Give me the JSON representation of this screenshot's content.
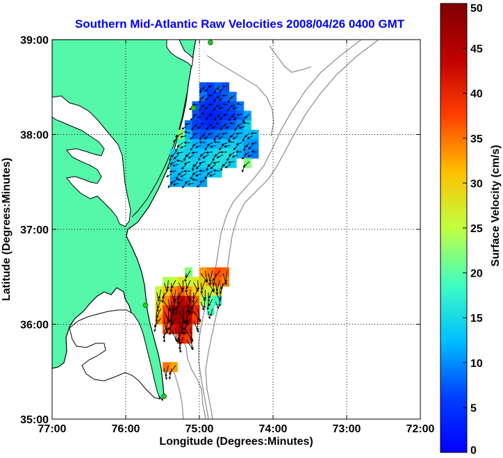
{
  "chart_data": {
    "type": "heatmap",
    "title": "Southern Mid-Atlantic Raw Velocities 2008/04/26 0400 GMT",
    "xlabel": "Longitude (Degrees:Minutes)",
    "ylabel": "Latitude (Degrees:Minutes)",
    "xlim": [
      -77,
      -72
    ],
    "ylim": [
      35,
      39
    ],
    "x_ticks": [
      {
        "value": -77,
        "label": "77:00"
      },
      {
        "value": -76,
        "label": "76:00"
      },
      {
        "value": -75,
        "label": "75:00"
      },
      {
        "value": -74,
        "label": "74:00"
      },
      {
        "value": -73,
        "label": "73:00"
      },
      {
        "value": -72,
        "label": "72:00"
      }
    ],
    "y_ticks": [
      {
        "value": 35,
        "label": "35:00"
      },
      {
        "value": 36,
        "label": "36:00"
      },
      {
        "value": 37,
        "label": "37:00"
      },
      {
        "value": 38,
        "label": "38:00"
      },
      {
        "value": 39,
        "label": "39:00"
      }
    ],
    "grid": "dotted",
    "colorbar": {
      "label": "Surface Velocity (cm/s)",
      "min": 0,
      "max": 50,
      "ticks": [
        0,
        5,
        10,
        15,
        20,
        25,
        30,
        35,
        40,
        45,
        50
      ]
    },
    "colors": {
      "land": "#55f7a8",
      "coast": "#000000",
      "bathymetry": "#909090",
      "station": "#22cc22",
      "arrow": "#000000"
    },
    "stations": [
      {
        "lon": -74.85,
        "lat": 38.97
      },
      {
        "lon": -75.08,
        "lat": 38.28
      },
      {
        "lon": -75.73,
        "lat": 36.2
      },
      {
        "lon": -75.48,
        "lat": 35.24
      }
    ],
    "regions": [
      {
        "name": "north",
        "cells": [
          {
            "lon": -74.95,
            "lat": 38.5,
            "v": 7
          },
          {
            "lon": -74.85,
            "lat": 38.5,
            "v": 6
          },
          {
            "lon": -74.75,
            "lat": 38.5,
            "v": 8
          },
          {
            "lon": -74.65,
            "lat": 38.5,
            "v": 7
          },
          {
            "lon": -74.95,
            "lat": 38.4,
            "v": 9
          },
          {
            "lon": -74.85,
            "lat": 38.4,
            "v": 5
          },
          {
            "lon": -74.75,
            "lat": 38.4,
            "v": 6
          },
          {
            "lon": -74.65,
            "lat": 38.4,
            "v": 8
          },
          {
            "lon": -74.55,
            "lat": 38.4,
            "v": 9
          },
          {
            "lon": -75.05,
            "lat": 38.3,
            "v": 8
          },
          {
            "lon": -74.95,
            "lat": 38.3,
            "v": 5
          },
          {
            "lon": -74.85,
            "lat": 38.3,
            "v": 4
          },
          {
            "lon": -74.75,
            "lat": 38.3,
            "v": 5
          },
          {
            "lon": -74.65,
            "lat": 38.3,
            "v": 6
          },
          {
            "lon": -74.55,
            "lat": 38.3,
            "v": 7
          },
          {
            "lon": -74.45,
            "lat": 38.3,
            "v": 9
          },
          {
            "lon": -75.05,
            "lat": 38.2,
            "v": 7
          },
          {
            "lon": -74.95,
            "lat": 38.2,
            "v": 4
          },
          {
            "lon": -74.85,
            "lat": 38.2,
            "v": 3
          },
          {
            "lon": -74.75,
            "lat": 38.2,
            "v": 4
          },
          {
            "lon": -74.65,
            "lat": 38.2,
            "v": 5
          },
          {
            "lon": -74.55,
            "lat": 38.2,
            "v": 6
          },
          {
            "lon": -74.45,
            "lat": 38.2,
            "v": 8
          },
          {
            "lon": -74.35,
            "lat": 38.2,
            "v": 11
          },
          {
            "lon": -75.15,
            "lat": 38.1,
            "v": 9
          },
          {
            "lon": -75.05,
            "lat": 38.1,
            "v": 6
          },
          {
            "lon": -74.95,
            "lat": 38.1,
            "v": 5
          },
          {
            "lon": -74.85,
            "lat": 38.1,
            "v": 4
          },
          {
            "lon": -74.75,
            "lat": 38.1,
            "v": 5
          },
          {
            "lon": -74.65,
            "lat": 38.1,
            "v": 7
          },
          {
            "lon": -74.55,
            "lat": 38.1,
            "v": 8
          },
          {
            "lon": -74.45,
            "lat": 38.1,
            "v": 10
          },
          {
            "lon": -74.35,
            "lat": 38.1,
            "v": 14
          },
          {
            "lon": -75.25,
            "lat": 38.0,
            "v": 22
          },
          {
            "lon": -75.15,
            "lat": 38.0,
            "v": 12
          },
          {
            "lon": -75.05,
            "lat": 38.0,
            "v": 8
          },
          {
            "lon": -74.95,
            "lat": 38.0,
            "v": 7
          },
          {
            "lon": -74.85,
            "lat": 38.0,
            "v": 8
          },
          {
            "lon": -74.75,
            "lat": 38.0,
            "v": 9
          },
          {
            "lon": -74.65,
            "lat": 38.0,
            "v": 10
          },
          {
            "lon": -74.55,
            "lat": 38.0,
            "v": 11
          },
          {
            "lon": -74.45,
            "lat": 38.0,
            "v": 12
          },
          {
            "lon": -74.35,
            "lat": 38.0,
            "v": 13
          },
          {
            "lon": -74.25,
            "lat": 38.0,
            "v": 12
          },
          {
            "lon": -75.25,
            "lat": 37.9,
            "v": 18
          },
          {
            "lon": -75.15,
            "lat": 37.9,
            "v": 14
          },
          {
            "lon": -75.05,
            "lat": 37.9,
            "v": 12
          },
          {
            "lon": -74.95,
            "lat": 37.9,
            "v": 11
          },
          {
            "lon": -74.85,
            "lat": 37.9,
            "v": 12
          },
          {
            "lon": -74.75,
            "lat": 37.9,
            "v": 12
          },
          {
            "lon": -74.65,
            "lat": 37.9,
            "v": 13
          },
          {
            "lon": -74.55,
            "lat": 37.9,
            "v": 14
          },
          {
            "lon": -74.45,
            "lat": 37.9,
            "v": 13
          },
          {
            "lon": -74.35,
            "lat": 37.9,
            "v": 11
          },
          {
            "lon": -74.25,
            "lat": 37.9,
            "v": 10
          },
          {
            "lon": -75.35,
            "lat": 37.8,
            "v": 14
          },
          {
            "lon": -75.25,
            "lat": 37.8,
            "v": 15
          },
          {
            "lon": -75.15,
            "lat": 37.8,
            "v": 14
          },
          {
            "lon": -75.05,
            "lat": 37.8,
            "v": 13
          },
          {
            "lon": -74.95,
            "lat": 37.8,
            "v": 13
          },
          {
            "lon": -74.85,
            "lat": 37.8,
            "v": 14
          },
          {
            "lon": -74.75,
            "lat": 37.8,
            "v": 15
          },
          {
            "lon": -74.65,
            "lat": 37.8,
            "v": 16
          },
          {
            "lon": -74.55,
            "lat": 37.8,
            "v": 15
          },
          {
            "lon": -74.45,
            "lat": 37.8,
            "v": 12
          },
          {
            "lon": -74.35,
            "lat": 37.8,
            "v": 10
          },
          {
            "lon": -74.25,
            "lat": 37.8,
            "v": 9
          },
          {
            "lon": -75.35,
            "lat": 37.7,
            "v": 13
          },
          {
            "lon": -75.25,
            "lat": 37.7,
            "v": 14
          },
          {
            "lon": -75.15,
            "lat": 37.7,
            "v": 15
          },
          {
            "lon": -75.05,
            "lat": 37.7,
            "v": 14
          },
          {
            "lon": -74.95,
            "lat": 37.7,
            "v": 14
          },
          {
            "lon": -74.85,
            "lat": 37.7,
            "v": 15
          },
          {
            "lon": -74.75,
            "lat": 37.7,
            "v": 16
          },
          {
            "lon": -74.65,
            "lat": 37.7,
            "v": 15
          },
          {
            "lon": -74.55,
            "lat": 37.7,
            "v": 14
          },
          {
            "lon": -74.35,
            "lat": 37.7,
            "v": 22
          },
          {
            "lon": -75.35,
            "lat": 37.6,
            "v": 12
          },
          {
            "lon": -75.25,
            "lat": 37.6,
            "v": 13
          },
          {
            "lon": -75.15,
            "lat": 37.6,
            "v": 14
          },
          {
            "lon": -75.05,
            "lat": 37.6,
            "v": 13
          },
          {
            "lon": -74.95,
            "lat": 37.6,
            "v": 12
          },
          {
            "lon": -74.85,
            "lat": 37.6,
            "v": 13
          },
          {
            "lon": -74.75,
            "lat": 37.6,
            "v": 14
          },
          {
            "lon": -75.35,
            "lat": 37.5,
            "v": 11
          },
          {
            "lon": -75.25,
            "lat": 37.5,
            "v": 12
          },
          {
            "lon": -75.15,
            "lat": 37.5,
            "v": 13
          },
          {
            "lon": -75.05,
            "lat": 37.5,
            "v": 12
          },
          {
            "lon": -74.95,
            "lat": 37.5,
            "v": 11
          }
        ]
      },
      {
        "name": "south",
        "cells": [
          {
            "lon": -74.95,
            "lat": 36.55,
            "v": 33
          },
          {
            "lon": -74.85,
            "lat": 36.55,
            "v": 35
          },
          {
            "lon": -74.75,
            "lat": 36.55,
            "v": 37
          },
          {
            "lon": -74.65,
            "lat": 36.55,
            "v": 36
          },
          {
            "lon": -75.15,
            "lat": 36.55,
            "v": 22
          },
          {
            "lon": -75.45,
            "lat": 36.45,
            "v": 24
          },
          {
            "lon": -75.35,
            "lat": 36.45,
            "v": 25
          },
          {
            "lon": -75.25,
            "lat": 36.45,
            "v": 28
          },
          {
            "lon": -75.15,
            "lat": 36.45,
            "v": 26
          },
          {
            "lon": -75.05,
            "lat": 36.45,
            "v": 27
          },
          {
            "lon": -74.95,
            "lat": 36.45,
            "v": 30
          },
          {
            "lon": -74.85,
            "lat": 36.45,
            "v": 33
          },
          {
            "lon": -74.75,
            "lat": 36.45,
            "v": 36
          },
          {
            "lon": -74.65,
            "lat": 36.45,
            "v": 34
          },
          {
            "lon": -75.55,
            "lat": 36.35,
            "v": 26
          },
          {
            "lon": -75.45,
            "lat": 36.35,
            "v": 30
          },
          {
            "lon": -75.35,
            "lat": 36.35,
            "v": 34
          },
          {
            "lon": -75.25,
            "lat": 36.35,
            "v": 36
          },
          {
            "lon": -75.15,
            "lat": 36.35,
            "v": 33
          },
          {
            "lon": -75.05,
            "lat": 36.35,
            "v": 30
          },
          {
            "lon": -74.95,
            "lat": 36.35,
            "v": 28
          },
          {
            "lon": -74.85,
            "lat": 36.35,
            "v": 26
          },
          {
            "lon": -74.75,
            "lat": 36.35,
            "v": 28
          },
          {
            "lon": -75.55,
            "lat": 36.25,
            "v": 28
          },
          {
            "lon": -75.45,
            "lat": 36.25,
            "v": 34
          },
          {
            "lon": -75.35,
            "lat": 36.25,
            "v": 40
          },
          {
            "lon": -75.25,
            "lat": 36.25,
            "v": 44
          },
          {
            "lon": -75.15,
            "lat": 36.25,
            "v": 42
          },
          {
            "lon": -75.05,
            "lat": 36.25,
            "v": 36
          },
          {
            "lon": -74.95,
            "lat": 36.25,
            "v": 24
          },
          {
            "lon": -74.85,
            "lat": 36.25,
            "v": 20
          },
          {
            "lon": -74.75,
            "lat": 36.25,
            "v": 18
          },
          {
            "lon": -75.55,
            "lat": 36.15,
            "v": 30
          },
          {
            "lon": -75.45,
            "lat": 36.15,
            "v": 38
          },
          {
            "lon": -75.35,
            "lat": 36.15,
            "v": 45
          },
          {
            "lon": -75.25,
            "lat": 36.15,
            "v": 48
          },
          {
            "lon": -75.15,
            "lat": 36.15,
            "v": 46
          },
          {
            "lon": -75.05,
            "lat": 36.15,
            "v": 40
          },
          {
            "lon": -74.85,
            "lat": 36.15,
            "v": 19
          },
          {
            "lon": -75.55,
            "lat": 36.05,
            "v": 33
          },
          {
            "lon": -75.45,
            "lat": 36.05,
            "v": 40
          },
          {
            "lon": -75.35,
            "lat": 36.05,
            "v": 46
          },
          {
            "lon": -75.25,
            "lat": 36.05,
            "v": 47
          },
          {
            "lon": -75.15,
            "lat": 36.05,
            "v": 44
          },
          {
            "lon": -75.05,
            "lat": 36.05,
            "v": 38
          },
          {
            "lon": -75.45,
            "lat": 35.95,
            "v": 36
          },
          {
            "lon": -75.35,
            "lat": 35.95,
            "v": 42
          },
          {
            "lon": -75.25,
            "lat": 35.95,
            "v": 44
          },
          {
            "lon": -75.15,
            "lat": 35.95,
            "v": 41
          },
          {
            "lon": -75.25,
            "lat": 35.85,
            "v": 40
          },
          {
            "lon": -75.15,
            "lat": 35.85,
            "v": 38
          },
          {
            "lon": -75.45,
            "lat": 35.55,
            "v": 35
          },
          {
            "lon": -75.35,
            "lat": 35.55,
            "v": 33
          }
        ]
      }
    ]
  }
}
